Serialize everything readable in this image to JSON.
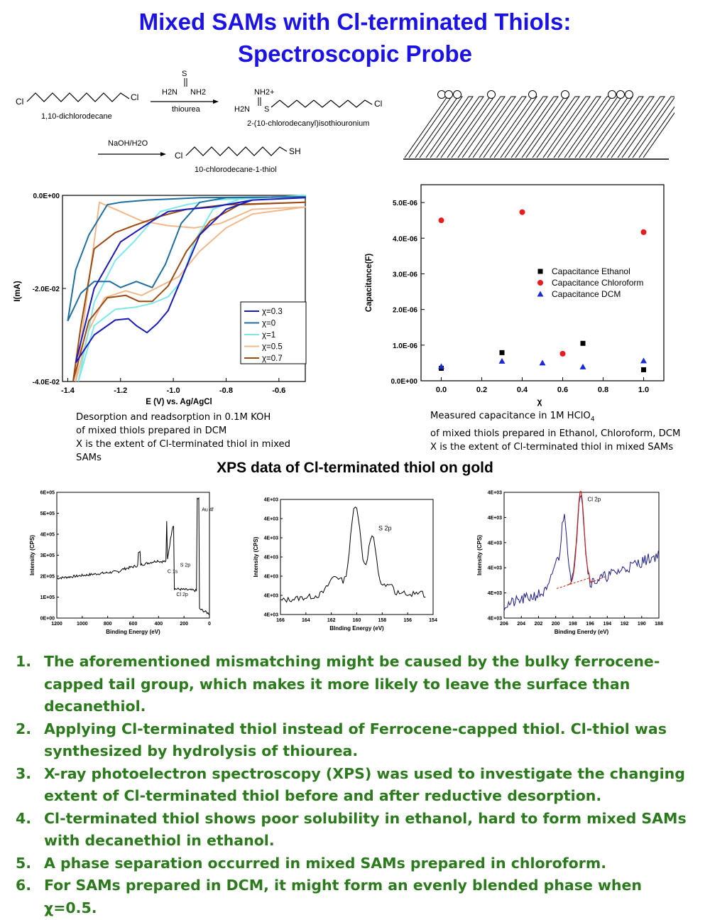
{
  "title": {
    "line1": "Mixed SAMs with Cl-terminated Thiols:",
    "line2": "Spectroscopic Probe"
  },
  "scheme": {
    "reactant1": "1,10-dichlorodecane",
    "reagent1": "thiourea",
    "product1": "2-(10-chlorodecanyl)isothiouronium",
    "reagent2": "NaOH/H2O",
    "product2": "10-chlorodecane-1-thiol",
    "atoms": {
      "cl": "Cl",
      "s": "S",
      "h2n": "H2N",
      "nh2": "NH2",
      "sh": "SH",
      "nh2plus": "NH2+"
    }
  },
  "cv_chart": {
    "caption": [
      "Desorption and readsorption in 0.1M KOH",
      "of mixed thiols prepared in DCM",
      "X is the extent of Cl-terminated thiol in mixed SAMs"
    ],
    "colors": {
      "x03": "#1a1ab8",
      "x0": "#1e6fa0",
      "x1": "#7de8e8",
      "x05": "#f2b88a",
      "x07": "#9c4a12"
    }
  },
  "cap_chart": {
    "caption": [
      "Measured capacitance in 1M HClO4",
      "of mixed thiols prepared in Ethanol, Chloroform, DCM",
      "X is the extent of Cl-terminated thiol in mixed SAMs"
    ],
    "colors": {
      "ethanol": "#000000",
      "chloroform": "#e81c1c",
      "dcm": "#1a2ad6"
    }
  },
  "xps": {
    "heading": "XPS data of Cl-terminated thiol on gold"
  },
  "chart_data": [
    {
      "type": "line",
      "xlabel": "E (V) vs. Ag/AgCl",
      "ylabel": "I(mA)",
      "xlim": [
        -1.42,
        -0.5
      ],
      "ylim": [
        -0.04,
        0.0
      ],
      "x_ticks": [
        "-1.4",
        "-1.2",
        "-1.0",
        "-0.8",
        "-0.6"
      ],
      "y_ticks": [
        "0.0E+00",
        "-2.0E-02",
        "-4.0E-02"
      ],
      "legend_position": "bottom-right",
      "series": [
        {
          "name": "χ=0.3",
          "cathodic_peaks": [
            [
              -1.17,
              -0.0265
            ],
            [
              -1.1,
              -0.0295
            ],
            [
              -1.02,
              -0.0248
            ]
          ],
          "return_peak": [
            -1.02,
            -0.001
          ]
        },
        {
          "name": "χ=0",
          "cathodic_peaks": [
            [
              -1.2,
              -0.0198
            ],
            [
              -1.08,
              -0.0195
            ]
          ],
          "return_peak": [
            -1.25,
            0.0
          ]
        },
        {
          "name": "χ=1",
          "cathodic_peaks": [
            [
              -1.06,
              -0.0235
            ]
          ],
          "return_peak": [
            -0.95,
            -0.002
          ]
        },
        {
          "name": "χ=0.5",
          "cathodic_peaks": [
            [
              -1.18,
              -0.0205
            ],
            [
              -1.04,
              -0.0195
            ]
          ],
          "return_peak": [
            -0.9,
            -0.006
          ]
        },
        {
          "name": "χ=0.7",
          "cathodic_peaks": [
            [
              -1.18,
              -0.0218
            ],
            [
              -1.08,
              -0.0228
            ]
          ],
          "return_peak": [
            -1.28,
            -0.002
          ]
        }
      ]
    },
    {
      "type": "scatter",
      "xlabel": "χ",
      "ylabel": "Capacitance(F)",
      "xlim": [
        -0.1,
        1.1
      ],
      "ylim": [
        0,
        5.5e-06
      ],
      "x_ticks": [
        "0.0",
        "0.2",
        "0.4",
        "0.6",
        "0.8",
        "1.0"
      ],
      "y_ticks": [
        "0.0E+00",
        "1.0E-06",
        "2.0E-06",
        "3.0E-06",
        "4.0E-06",
        "5.0E-06"
      ],
      "legend_position": "middle-right",
      "series": [
        {
          "name": "Capacitance Ethanol",
          "marker": "square",
          "x": [
            0.0,
            0.3,
            0.7,
            1.0
          ],
          "y": [
            3.5e-07,
            7.9e-07,
            1.05e-06,
            3.1e-07
          ]
        },
        {
          "name": "Capacitance Chloroform",
          "marker": "circle",
          "x": [
            0.0,
            0.4,
            0.6,
            1.0
          ],
          "y": [
            4.5e-06,
            4.73e-06,
            7.6e-07,
            4.17e-06
          ]
        },
        {
          "name": "Capacitance DCM",
          "marker": "triangle",
          "x": [
            0.0,
            0.3,
            0.5,
            0.7,
            1.0
          ],
          "y": [
            4e-07,
            5.5e-07,
            5e-07,
            3.9e-07,
            5.6e-07
          ]
        }
      ]
    },
    {
      "type": "line",
      "xlabel": "Binding Energy (eV)",
      "ylabel": "Intensity (CPS)",
      "xlim": [
        1200,
        0
      ],
      "ylim": [
        0,
        600000
      ],
      "x_ticks": [
        "1200",
        "1000",
        "800",
        "600",
        "400",
        "200",
        "0"
      ],
      "y_ticks": [
        "0E+00",
        "1E+05",
        "2E+05",
        "3E+05",
        "4E+05",
        "5E+05",
        "6E+05"
      ],
      "annotations": [
        "Au 4f",
        "S 2p",
        "C 1s",
        "Cl 2p"
      ]
    },
    {
      "type": "line",
      "xlabel": "BInding Energy (eV)",
      "ylabel": "Intensity (CPS)",
      "xlim": [
        166,
        154
      ],
      "x_ticks": [
        "166",
        "164",
        "162",
        "160",
        "158",
        "156",
        "154"
      ],
      "y_ticks": [
        "4E+03",
        "4E+03",
        "4E+03",
        "4E+03",
        "4E+03",
        "4E+03",
        "4E+03"
      ],
      "annotations": [
        "S 2p"
      ]
    },
    {
      "type": "line",
      "xlabel": "Binding Enerdy (eV)",
      "ylabel": "Intensity (CPS)",
      "xlim": [
        206,
        188
      ],
      "x_ticks": [
        "206",
        "204",
        "202",
        "200",
        "198",
        "196",
        "194",
        "192",
        "190",
        "188"
      ],
      "y_ticks": [
        "4E+03",
        "4E+03",
        "4E+03",
        "4E+03",
        "4E+03",
        "4E+03"
      ],
      "annotations": [
        "Cl 2p"
      ]
    }
  ],
  "notes": [
    {
      "num": "1.",
      "text": "The aforementioned mismatching might be caused by the bulky ferrocene-capped tail group, which makes it more likely to leave the surface than decanethiol."
    },
    {
      "num": "2.",
      "text": "Applying Cl-terminated thiol instead of Ferrocene-capped thiol. Cl-thiol was synthesized by hydrolysis of thiourea."
    },
    {
      "num": "3.",
      "text": "X-ray photoelectron spectroscopy (XPS) was used to investigate the changing extent of Cl-terminated thiol before and after reductive desorption."
    },
    {
      "num": "4.",
      "text": "Cl-terminated thiol shows poor solubility in ethanol, hard to form mixed SAMs with decanethiol in ethanol."
    },
    {
      "num": "5.",
      "text": "A phase separation occurred in mixed SAMs prepared in chloroform."
    },
    {
      "num": "6.",
      "text": "For SAMs prepared in DCM, it might form an evenly blended phase when χ=0.5."
    }
  ]
}
